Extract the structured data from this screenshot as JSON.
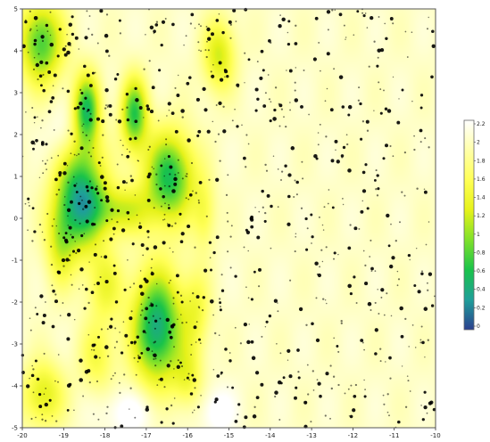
{
  "chart_data": {
    "type": "heatmap",
    "title": "",
    "xlabel": "",
    "ylabel": "",
    "xlim": [
      -20,
      0
    ],
    "ylim": [
      -5,
      5
    ],
    "x_ticks": [
      -20,
      -19,
      -18,
      -17,
      -16,
      -15,
      -14,
      -13,
      -12,
      -11,
      -10
    ],
    "x_tick_labels": [
      "-20",
      "-19",
      "-18",
      "-17",
      "-16",
      "-15",
      "-14",
      "-13",
      "-12",
      "-11",
      "-10"
    ],
    "y_ticks": [
      5,
      4,
      3,
      2,
      1,
      0,
      -1,
      -2,
      -3,
      -4,
      -5
    ],
    "y_tick_labels": [
      "5",
      "4",
      "3",
      "2",
      "1",
      "0",
      "-1",
      "-2",
      "-3",
      "-4",
      "-5"
    ],
    "grid": false,
    "legend": "right",
    "colorscale": [
      "#2b3f8f",
      "#1f9f9a",
      "#19c34a",
      "#7fe12a",
      "#e6f21a",
      "#ffff55",
      "#ffffa8",
      "#ffffff"
    ],
    "colorbar_ticks": [
      "2.2",
      "2",
      "1.8",
      "1.6",
      "1.4",
      "1.2",
      "1",
      "0.8",
      "0.6",
      "0.4",
      "0.2",
      "0"
    ],
    "field": {
      "base": 2.0,
      "low_centers": [
        {
          "x": -17.2,
          "y": 0.5,
          "depth": 1.6,
          "sx": 0.85,
          "sy": 0.9
        },
        {
          "x": -16.9,
          "y": 2.6,
          "depth": 1.35,
          "sx": 0.45,
          "sy": 0.6
        },
        {
          "x": -14.6,
          "y": 2.5,
          "depth": 1.3,
          "sx": 0.45,
          "sy": 0.6
        },
        {
          "x": -12.9,
          "y": 1.0,
          "depth": 1.4,
          "sx": 0.85,
          "sy": 0.75
        },
        {
          "x": -13.5,
          "y": -2.6,
          "depth": 1.6,
          "sx": 0.85,
          "sy": 0.95
        },
        {
          "x": -19.1,
          "y": 4.2,
          "depth": 1.25,
          "sx": 0.75,
          "sy": 0.7
        },
        {
          "x": -10.5,
          "y": 3.9,
          "depth": 0.8,
          "sx": 0.55,
          "sy": 0.6
        },
        {
          "x": -19.0,
          "y": -4.2,
          "depth": 0.75,
          "sx": 0.7,
          "sy": 0.55
        },
        {
          "x": -15.2,
          "y": 0.2,
          "depth": 0.75,
          "sx": 1.0,
          "sy": 0.4
        },
        {
          "x": -18.2,
          "y": -0.6,
          "depth": 0.6,
          "sx": 0.5,
          "sy": 0.7
        },
        {
          "x": -16.0,
          "y": -1.6,
          "depth": 0.55,
          "sx": 0.6,
          "sy": 0.6
        },
        {
          "x": -11.6,
          "y": -2.2,
          "depth": 0.5,
          "sx": 0.5,
          "sy": 0.7
        },
        {
          "x": -11.2,
          "y": 0.1,
          "depth": 0.45,
          "sx": 0.4,
          "sy": 0.6
        },
        {
          "x": -16.4,
          "y": -3.3,
          "depth": 0.5,
          "sx": 0.6,
          "sy": 0.6
        },
        {
          "x": -12.0,
          "y": -3.8,
          "depth": 0.5,
          "sx": 0.5,
          "sy": 0.5
        }
      ],
      "high_centers": [
        {
          "x": -14.8,
          "y": -4.6,
          "height": 0.3,
          "sx": 1.0,
          "sy": 0.4
        },
        {
          "x": -10.6,
          "y": -4.6,
          "height": 0.3,
          "sx": 0.6,
          "sy": 0.4
        },
        {
          "x": -18.0,
          "y": 2.0,
          "height": 0.25,
          "sx": 0.6,
          "sy": 0.5
        }
      ]
    },
    "points": {
      "count": 1100,
      "seed": 7,
      "color": "#000000"
    }
  }
}
